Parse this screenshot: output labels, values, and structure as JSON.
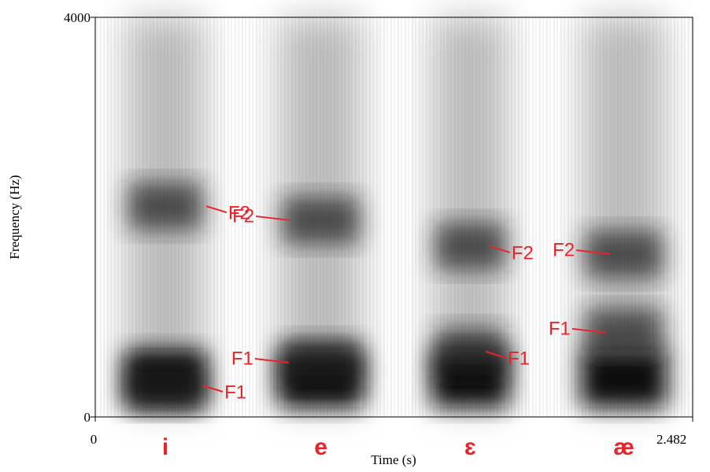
{
  "chart_data": {
    "type": "spectrogram",
    "xlabel": "Time (s)",
    "ylabel": "Frequency (Hz)",
    "xlim": [
      0,
      2.482
    ],
    "ylim": [
      0,
      4000
    ],
    "xticks": [
      0,
      2.482
    ],
    "yticks": [
      0,
      4000
    ],
    "vowels": [
      {
        "label": "i",
        "start": 0.111,
        "end": 0.471
      },
      {
        "label": "e",
        "start": 0.749,
        "end": 1.125
      },
      {
        "label": "ɛ",
        "start": 1.386,
        "end": 1.73
      },
      {
        "label": "æ",
        "start": 2.008,
        "end": 2.384
      }
    ],
    "annotations": [
      {
        "text": "F2",
        "x": 0.461,
        "y": 2110
      },
      {
        "text": "F2",
        "x": 0.808,
        "y": 1969
      },
      {
        "text": "F2",
        "x": 1.638,
        "y": 1709
      },
      {
        "text": "F2",
        "x": 2.139,
        "y": 1630
      },
      {
        "text": "F1",
        "x": 0.445,
        "y": 315
      },
      {
        "text": "F1",
        "x": 0.804,
        "y": 543
      },
      {
        "text": "F1",
        "x": 1.622,
        "y": 654
      },
      {
        "text": "F1",
        "x": 2.122,
        "y": 843
      }
    ],
    "annotation_color": "#e8242b"
  }
}
